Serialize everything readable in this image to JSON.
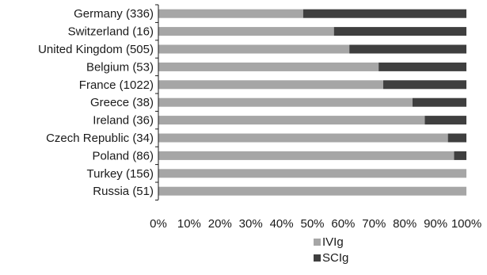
{
  "chart_data": {
    "type": "bar",
    "orientation": "horizontal",
    "stacked": true,
    "normalized": true,
    "categories": [
      "Germany (336)",
      "Switzerland (16)",
      "United Kingdom (505)",
      "Belgium (53)",
      "France (1022)",
      "Greece (38)",
      "Ireland (36)",
      "Czech Republic (34)",
      "Poland (86)",
      "Turkey (156)",
      "Russia (51)"
    ],
    "series": [
      {
        "name": "IVIg",
        "color": "#a6a6a6",
        "values": [
          47,
          57,
          62,
          71.5,
          73,
          82.5,
          86.5,
          94,
          96,
          100,
          100
        ]
      },
      {
        "name": "SCIg",
        "color": "#3f3f3f",
        "values": [
          53,
          43,
          38,
          28.5,
          27,
          17.5,
          13.5,
          6,
          4,
          0,
          0
        ]
      }
    ],
    "xlim": [
      0,
      100
    ],
    "x_ticks": [
      "0%",
      "10%",
      "20%",
      "30%",
      "40%",
      "50%",
      "60%",
      "70%",
      "80%",
      "90%",
      "100%"
    ],
    "grid": false,
    "legend": {
      "position": "bottom",
      "entries": [
        "IVIg",
        "SCIg"
      ]
    },
    "title": "",
    "xlabel": "",
    "ylabel": ""
  }
}
